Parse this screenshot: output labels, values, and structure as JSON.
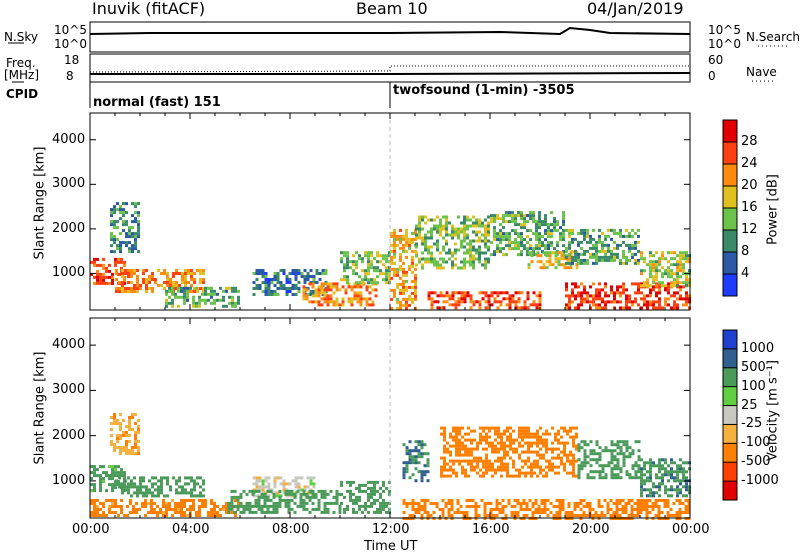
{
  "header": {
    "station": "Inuvik (fitACF)",
    "beam": "Beam 10",
    "date": "04/Jan/2019"
  },
  "aux_panel": {
    "nsky_label": "N.Sky",
    "nsearch_label": "N.Search",
    "freq_label_1": "Freq.",
    "freq_label_2": "[MHz]",
    "nave_label": "Nave",
    "cpid_label": "CPID",
    "left_ticks_top": [
      "10^5",
      "10^0"
    ],
    "right_ticks_top": [
      "10^5",
      "10^0"
    ],
    "left_ticks_freq": [
      "18",
      "8"
    ],
    "right_ticks_freq": [
      "60",
      "0"
    ],
    "cpid_modes": [
      {
        "label": "normal (fast) 151",
        "start_hour": 0
      },
      {
        "label": "twofsound (1-min) -3505",
        "start_hour": 12
      }
    ]
  },
  "chart_data": [
    {
      "type": "heatmap",
      "title": "",
      "xlabel": "Time UT",
      "ylabel": "Slant Range [km]",
      "x_range_hours": [
        0,
        24
      ],
      "x_ticks": [
        "00:00",
        "04:00",
        "08:00",
        "12:00",
        "16:00",
        "20:00",
        "00:00"
      ],
      "ylim": [
        180,
        4600
      ],
      "y_ticks": [
        1000,
        2000,
        3000,
        4000
      ],
      "colorbar": {
        "label": "Power [dB]",
        "ticks": [
          "4",
          "8",
          "12",
          "16",
          "20",
          "24",
          "28"
        ],
        "colors": [
          "#1e3cff",
          "#2a5aa8",
          "#3a8a6a",
          "#6cc24a",
          "#e0c020",
          "#ff8c10",
          "#ff4010",
          "#e00000"
        ]
      },
      "echo_regions": [
        {
          "t0": 0.0,
          "t1": 1.4,
          "r0": 750,
          "r1": 1350,
          "value": 26
        },
        {
          "t0": 0.8,
          "t1": 2.0,
          "r0": 1500,
          "r1": 2600,
          "value": 10
        },
        {
          "t0": 1.0,
          "t1": 4.5,
          "r0": 600,
          "r1": 1100,
          "value": 22
        },
        {
          "t0": 3.0,
          "t1": 6.0,
          "r0": 250,
          "r1": 700,
          "value": 12
        },
        {
          "t0": 6.5,
          "t1": 9.5,
          "r0": 500,
          "r1": 1100,
          "value": 8
        },
        {
          "t0": 8.5,
          "t1": 11.5,
          "r0": 300,
          "r1": 800,
          "value": 22
        },
        {
          "t0": 10.0,
          "t1": 12.0,
          "r0": 800,
          "r1": 1500,
          "value": 14
        },
        {
          "t0": 12.0,
          "t1": 13.0,
          "r0": 200,
          "r1": 2000,
          "value": 20
        },
        {
          "t0": 13.0,
          "t1": 16.0,
          "r0": 1100,
          "r1": 2300,
          "value": 14
        },
        {
          "t0": 13.5,
          "t1": 18.0,
          "r0": 250,
          "r1": 600,
          "value": 26
        },
        {
          "t0": 16.0,
          "t1": 19.0,
          "r0": 1400,
          "r1": 2400,
          "value": 12
        },
        {
          "t0": 17.5,
          "t1": 19.5,
          "r0": 1100,
          "r1": 1500,
          "value": 18
        },
        {
          "t0": 19.0,
          "t1": 22.0,
          "r0": 1200,
          "r1": 2000,
          "value": 12
        },
        {
          "t0": 19.0,
          "t1": 24.0,
          "r0": 250,
          "r1": 800,
          "value": 27
        },
        {
          "t0": 22.0,
          "t1": 24.0,
          "r0": 700,
          "r1": 1500,
          "value": 16
        }
      ]
    },
    {
      "type": "heatmap",
      "title": "",
      "xlabel": "Time UT",
      "ylabel": "Slant Range [km]",
      "x_range_hours": [
        0,
        24
      ],
      "x_ticks": [
        "00:00",
        "04:00",
        "08:00",
        "12:00",
        "16:00",
        "20:00",
        "00:00"
      ],
      "ylim": [
        180,
        4600
      ],
      "y_ticks": [
        1000,
        2000,
        3000,
        4000
      ],
      "colorbar": {
        "label": "Velocity [m s⁻¹]",
        "ticks": [
          "1000",
          "500",
          "100",
          "25",
          "-25",
          "-100",
          "-500",
          "-1000"
        ],
        "colors": [
          "#2040d0",
          "#306090",
          "#4a9a5a",
          "#60d040",
          "#c8c8c0",
          "#f5b040",
          "#ff8000",
          "#ff4000",
          "#e00000"
        ]
      },
      "echo_regions": [
        {
          "t0": 0.0,
          "t1": 1.4,
          "r0": 800,
          "r1": 1350,
          "value": 150
        },
        {
          "t0": 0.8,
          "t1": 1.9,
          "r0": 1600,
          "r1": 2500,
          "value": -80
        },
        {
          "t0": 1.0,
          "t1": 4.5,
          "r0": 650,
          "r1": 1100,
          "value": 200
        },
        {
          "t0": 0.0,
          "t1": 6.0,
          "r0": 220,
          "r1": 600,
          "value": -150
        },
        {
          "t0": 6.5,
          "t1": 9.0,
          "r0": 700,
          "r1": 1100,
          "value": 0
        },
        {
          "t0": 5.5,
          "t1": 10.0,
          "r0": 300,
          "r1": 800,
          "value": 300
        },
        {
          "t0": 10.0,
          "t1": 12.0,
          "r0": 300,
          "r1": 1000,
          "value": 200
        },
        {
          "t0": 12.5,
          "t1": 13.5,
          "r0": 1000,
          "r1": 1900,
          "value": 600
        },
        {
          "t0": 14.0,
          "t1": 19.5,
          "r0": 1100,
          "r1": 2200,
          "value": -200
        },
        {
          "t0": 12.5,
          "t1": 24.0,
          "r0": 200,
          "r1": 600,
          "value": -300
        },
        {
          "t0": 19.5,
          "t1": 22.0,
          "r0": 1100,
          "r1": 1900,
          "value": 200
        },
        {
          "t0": 22.0,
          "t1": 24.0,
          "r0": 700,
          "r1": 1500,
          "value": 400
        }
      ]
    }
  ]
}
